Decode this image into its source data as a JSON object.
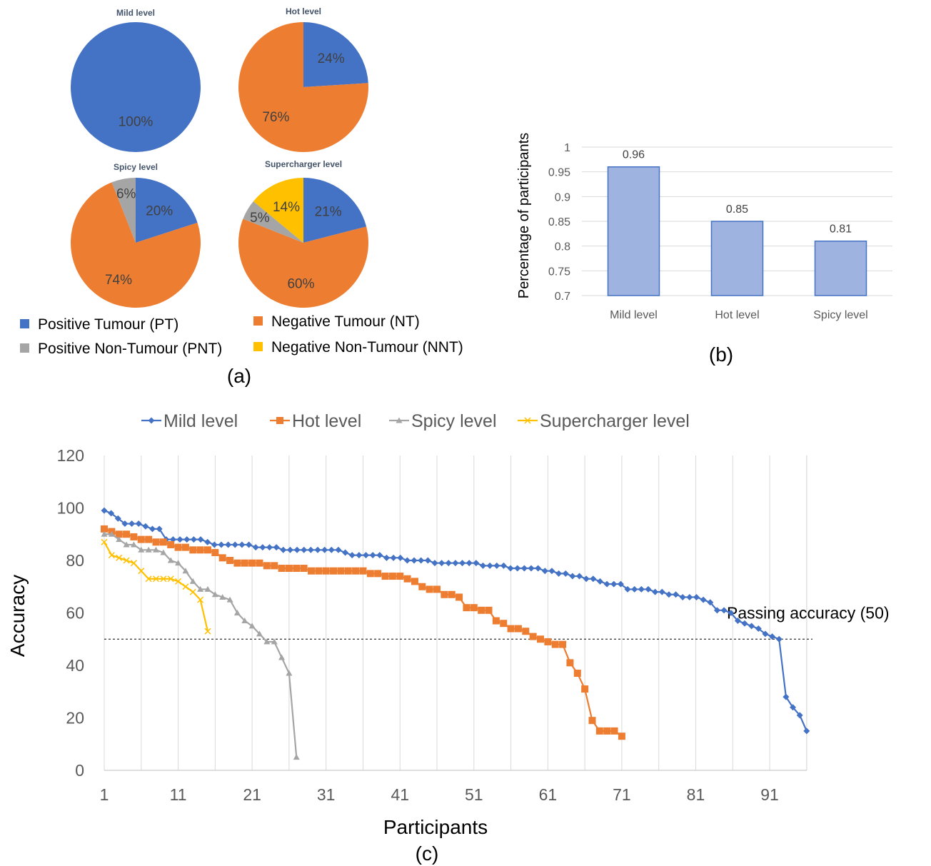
{
  "panel_labels": {
    "a": "(a)",
    "b": "(b)",
    "c": "(c)"
  },
  "colors": {
    "PT": "#4472C4",
    "NT": "#ED7D31",
    "PNT": "#A5A5A5",
    "NNT": "#FFC000",
    "bar_fill": "#9FB3E0",
    "bar_edge": "#4472C4",
    "mild": "#4472C4",
    "hot": "#ED7D31",
    "spicy": "#A5A5A5",
    "supercharger": "#FFC000"
  },
  "pie_legend": [
    {
      "key": "PT",
      "label": "Positive Tumour (PT)"
    },
    {
      "key": "NT",
      "label": "Negative Tumour (NT)"
    },
    {
      "key": "PNT",
      "label": "Positive Non-Tumour (PNT)"
    },
    {
      "key": "NNT",
      "label": "Negative Non-Tumour (NNT)"
    }
  ],
  "line_legend": [
    "Mild level",
    "Hot level",
    "Spicy level",
    "Supercharger level"
  ],
  "chart_data": [
    {
      "type": "pie",
      "panel": "a",
      "title": "Mild level",
      "slices": [
        {
          "key": "PT",
          "value": 100,
          "label": "100%"
        }
      ]
    },
    {
      "type": "pie",
      "panel": "a",
      "title": "Hot level",
      "slices": [
        {
          "key": "PT",
          "value": 24,
          "label": "24%"
        },
        {
          "key": "NT",
          "value": 76,
          "label": "76%"
        }
      ]
    },
    {
      "type": "pie",
      "panel": "a",
      "title": "Spicy level",
      "slices": [
        {
          "key": "PT",
          "value": 20,
          "label": "20%"
        },
        {
          "key": "NT",
          "value": 74,
          "label": "74%"
        },
        {
          "key": "PNT",
          "value": 6,
          "label": "6%"
        }
      ]
    },
    {
      "type": "pie",
      "panel": "a",
      "title": "Supercharger level",
      "slices": [
        {
          "key": "PT",
          "value": 21,
          "label": "21%"
        },
        {
          "key": "NT",
          "value": 60,
          "label": "60%"
        },
        {
          "key": "PNT",
          "value": 5,
          "label": "5%"
        },
        {
          "key": "NNT",
          "value": 14,
          "label": "14%"
        }
      ]
    },
    {
      "type": "bar",
      "panel": "b",
      "categories": [
        "Mild level",
        "Hot level",
        "Spicy level"
      ],
      "values": [
        0.96,
        0.85,
        0.81
      ],
      "value_labels": [
        "0.96",
        "0.85",
        "0.81"
      ],
      "ylabel": "Percentage of participants",
      "ylim": [
        0.7,
        1
      ],
      "yticks": [
        "0.7",
        "0.75",
        "0.8",
        "0.85",
        "0.9",
        "0.95",
        "1"
      ],
      "grid": true
    },
    {
      "type": "line",
      "panel": "c",
      "xlabel": "Participants",
      "ylabel": "Accuracy",
      "xlim": [
        1,
        96
      ],
      "ylim": [
        0,
        120
      ],
      "xticks": [
        "1",
        "11",
        "21",
        "31",
        "41",
        "51",
        "61",
        "71",
        "81",
        "91"
      ],
      "yticks": [
        "0",
        "20",
        "40",
        "60",
        "80",
        "100",
        "120"
      ],
      "legend_position": "top",
      "threshold": {
        "y": 50,
        "label": "Passing accuracy (50)"
      },
      "series": [
        {
          "name": "Mild level",
          "marker": "diamond",
          "values": [
            99,
            98,
            96,
            94,
            94,
            94,
            93,
            92,
            92,
            88,
            88,
            88,
            88,
            88,
            88,
            87,
            86,
            86,
            86,
            86,
            86,
            86,
            85,
            85,
            85,
            85,
            84,
            84,
            84,
            84,
            84,
            84,
            84,
            84,
            84,
            83,
            82,
            82,
            82,
            82,
            82,
            81,
            81,
            81,
            80,
            80,
            80,
            80,
            79,
            79,
            79,
            79,
            79,
            79,
            79,
            78,
            78,
            78,
            78,
            77,
            77,
            77,
            77,
            77,
            76,
            76,
            75,
            75,
            74,
            74,
            73,
            73,
            72,
            71,
            71,
            71,
            69,
            69,
            69,
            69,
            68,
            68,
            67,
            67,
            66,
            66,
            66,
            65,
            64,
            61,
            61,
            60,
            57,
            56,
            55,
            54,
            52,
            51,
            50,
            28,
            24,
            21,
            15
          ]
        },
        {
          "name": "Hot level",
          "marker": "square",
          "values": [
            92,
            91,
            90,
            90,
            89,
            88,
            88,
            87,
            87,
            86,
            85,
            85,
            84,
            84,
            84,
            83,
            81,
            80,
            79,
            79,
            79,
            79,
            78,
            78,
            77,
            77,
            77,
            77,
            76,
            76,
            76,
            76,
            76,
            76,
            76,
            76,
            75,
            75,
            74,
            74,
            74,
            73,
            72,
            70,
            69,
            69,
            67,
            67,
            66,
            62,
            62,
            61,
            61,
            57,
            56,
            54,
            54,
            53,
            51,
            50,
            49,
            48,
            48,
            41,
            37,
            31,
            19,
            15,
            15,
            15,
            13
          ]
        },
        {
          "name": "Spicy level",
          "marker": "triangle",
          "values": [
            90,
            90,
            88,
            86,
            86,
            84,
            84,
            84,
            83,
            80,
            79,
            76,
            72,
            69,
            69,
            67,
            66,
            65,
            60,
            57,
            55,
            52,
            49,
            49,
            43,
            37,
            5
          ]
        },
        {
          "name": "Supercharger level",
          "marker": "x",
          "values": [
            87,
            82,
            81,
            80,
            79,
            76,
            73,
            73,
            73,
            73,
            72,
            70,
            68,
            65,
            53
          ]
        }
      ]
    }
  ]
}
